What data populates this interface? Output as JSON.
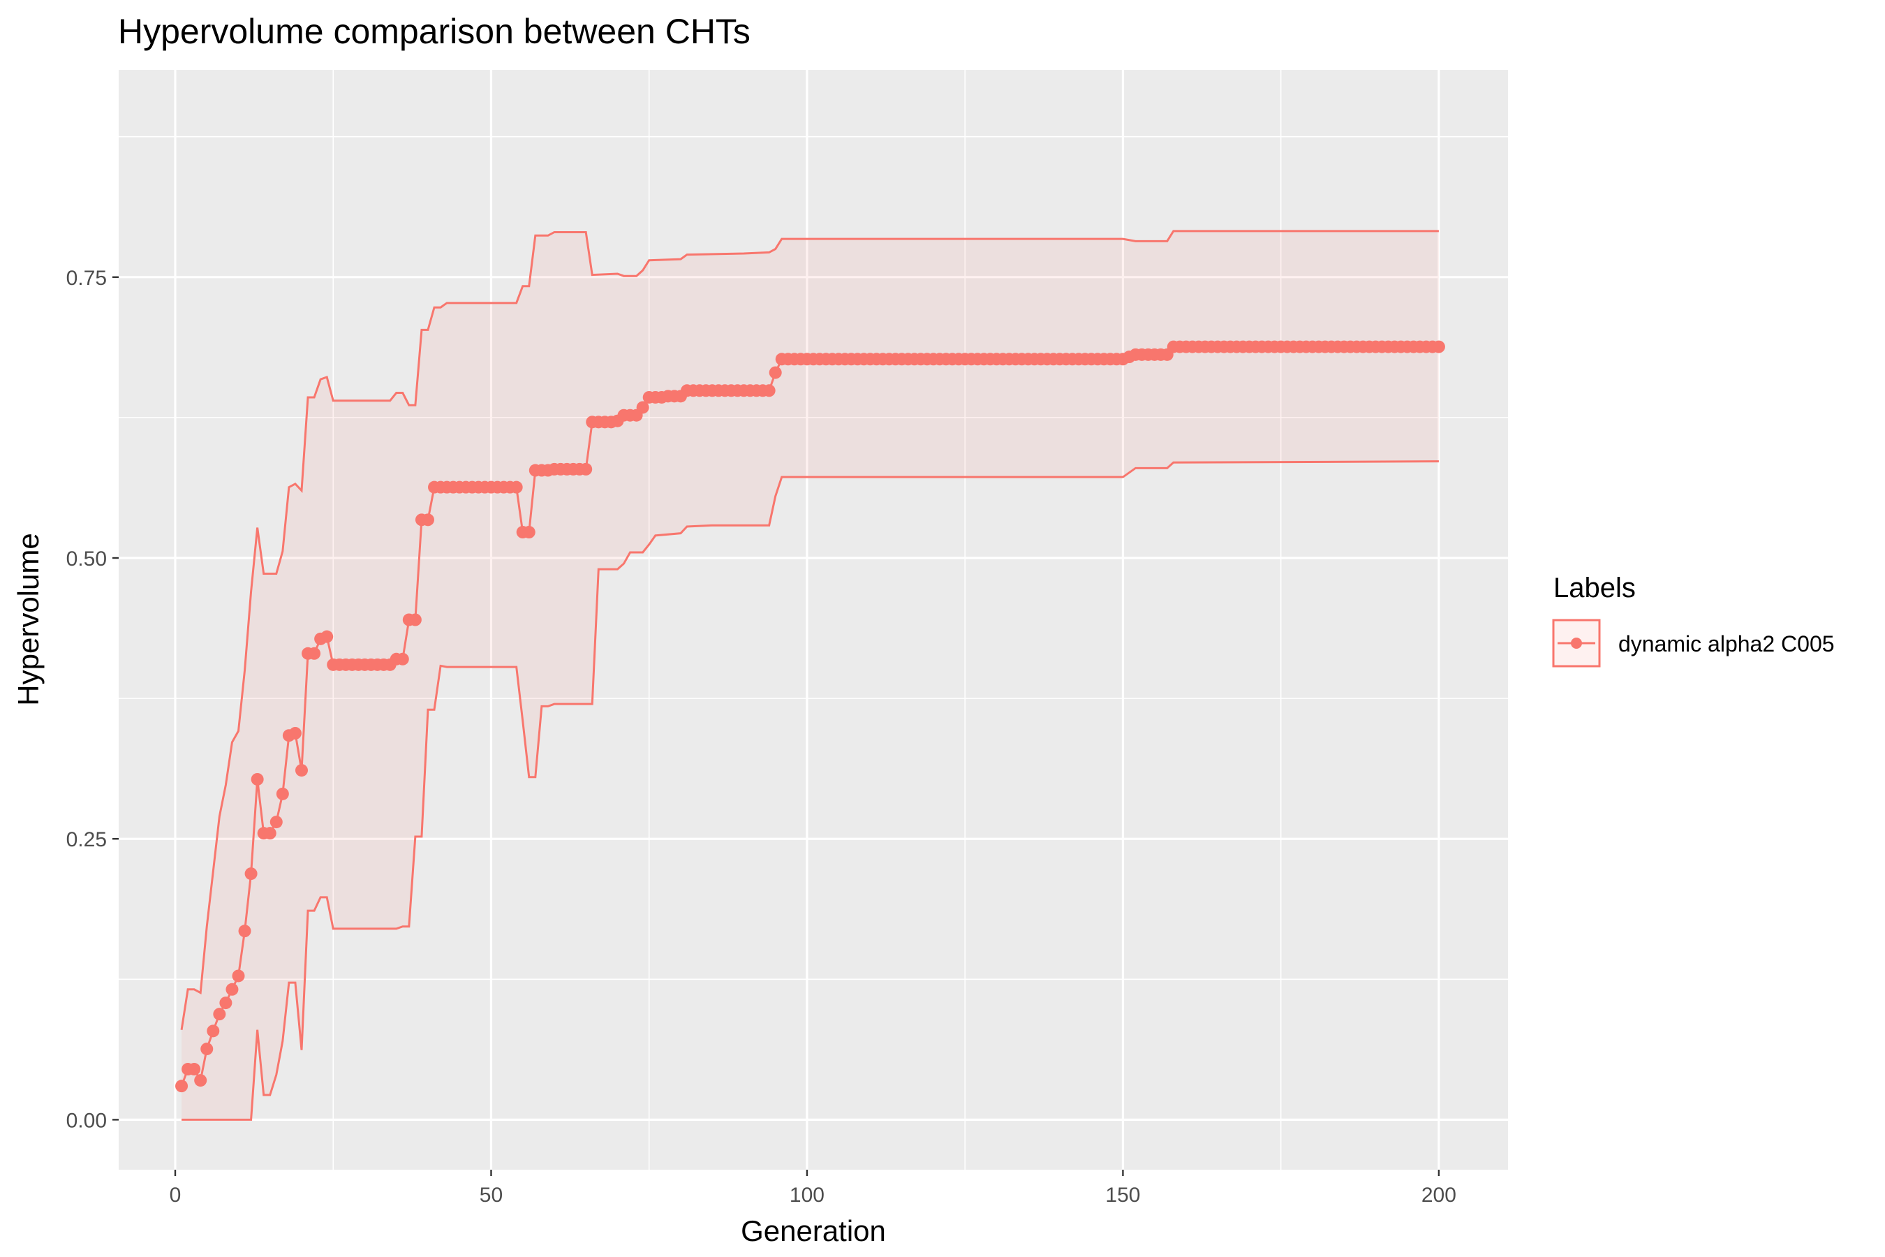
{
  "chart_data": {
    "type": "line",
    "title": "Hypervolume comparison between CHTs",
    "xlabel": "Generation",
    "ylabel": "Hypervolume",
    "xlim": [
      -8.95,
      210.95
    ],
    "ylim": [
      -0.0445,
      0.9345
    ],
    "x_ticks": [
      0,
      50,
      100,
      150,
      200
    ],
    "x_tick_labels": [
      "0",
      "50",
      "100",
      "150",
      "200"
    ],
    "y_ticks": [
      0,
      0.25,
      0.5,
      0.75
    ],
    "y_tick_labels": [
      "0.00",
      "0.25",
      "0.50",
      "0.75"
    ],
    "grid": true,
    "legend_position": "right",
    "legend_title": "Labels",
    "series": [
      {
        "name": "dynamic alpha2 C005",
        "color": "#F8766D",
        "ribbon_fill": "#F8766D",
        "mean": [
          [
            1,
            0.03
          ],
          [
            2,
            0.045
          ],
          [
            3,
            0.045
          ],
          [
            4,
            0.035
          ],
          [
            5,
            0.063
          ],
          [
            6,
            0.079
          ],
          [
            7,
            0.094
          ],
          [
            8,
            0.104
          ],
          [
            9,
            0.116
          ],
          [
            10,
            0.128
          ],
          [
            11,
            0.168
          ],
          [
            12,
            0.219
          ],
          [
            13,
            0.303
          ],
          [
            14,
            0.255
          ],
          [
            15,
            0.255
          ],
          [
            16,
            0.265
          ],
          [
            17,
            0.29
          ],
          [
            18,
            0.342
          ],
          [
            19,
            0.344
          ],
          [
            20,
            0.311
          ],
          [
            21,
            0.415
          ],
          [
            22,
            0.415
          ],
          [
            23,
            0.428
          ],
          [
            24,
            0.43
          ],
          [
            25,
            0.405
          ],
          [
            26,
            0.405
          ],
          [
            27,
            0.405
          ],
          [
            28,
            0.405
          ],
          [
            29,
            0.405
          ],
          [
            30,
            0.405
          ],
          [
            31,
            0.405
          ],
          [
            32,
            0.405
          ],
          [
            33,
            0.405
          ],
          [
            34,
            0.405
          ],
          [
            35,
            0.41
          ],
          [
            36,
            0.41
          ],
          [
            37,
            0.445
          ],
          [
            38,
            0.445
          ],
          [
            39,
            0.534
          ],
          [
            40,
            0.534
          ],
          [
            41,
            0.563
          ],
          [
            42,
            0.563
          ],
          [
            43,
            0.563
          ],
          [
            44,
            0.563
          ],
          [
            45,
            0.563
          ],
          [
            46,
            0.563
          ],
          [
            47,
            0.563
          ],
          [
            48,
            0.563
          ],
          [
            49,
            0.563
          ],
          [
            50,
            0.563
          ],
          [
            51,
            0.563
          ],
          [
            52,
            0.563
          ],
          [
            53,
            0.563
          ],
          [
            54,
            0.563
          ],
          [
            55,
            0.523
          ],
          [
            56,
            0.523
          ],
          [
            57,
            0.578
          ],
          [
            58,
            0.578
          ],
          [
            59,
            0.578
          ],
          [
            60,
            0.579
          ],
          [
            61,
            0.579
          ],
          [
            62,
            0.579
          ],
          [
            63,
            0.579
          ],
          [
            64,
            0.579
          ],
          [
            65,
            0.579
          ],
          [
            66,
            0.621
          ],
          [
            67,
            0.621
          ],
          [
            68,
            0.621
          ],
          [
            69,
            0.621
          ],
          [
            70,
            0.622
          ],
          [
            71,
            0.627
          ],
          [
            72,
            0.627
          ],
          [
            73,
            0.627
          ],
          [
            74,
            0.634
          ],
          [
            75,
            0.643
          ],
          [
            76,
            0.643
          ],
          [
            77,
            0.643
          ],
          [
            78,
            0.644
          ],
          [
            79,
            0.644
          ],
          [
            80,
            0.644
          ],
          [
            81,
            0.649
          ],
          [
            82,
            0.649
          ],
          [
            83,
            0.649
          ],
          [
            84,
            0.649
          ],
          [
            85,
            0.649
          ],
          [
            86,
            0.649
          ],
          [
            87,
            0.649
          ],
          [
            88,
            0.649
          ],
          [
            89,
            0.649
          ],
          [
            90,
            0.649
          ],
          [
            91,
            0.649
          ],
          [
            92,
            0.649
          ],
          [
            93,
            0.649
          ],
          [
            94,
            0.649
          ],
          [
            95,
            0.665
          ],
          [
            96,
            0.677
          ],
          [
            100,
            0.677
          ],
          [
            110,
            0.677
          ],
          [
            120,
            0.677
          ],
          [
            130,
            0.677
          ],
          [
            140,
            0.677
          ],
          [
            150,
            0.677
          ],
          [
            152,
            0.681
          ],
          [
            155,
            0.681
          ],
          [
            157,
            0.681
          ],
          [
            158,
            0.688
          ],
          [
            160,
            0.688
          ],
          [
            170,
            0.688
          ],
          [
            180,
            0.688
          ],
          [
            190,
            0.688
          ],
          [
            200,
            0.688
          ]
        ],
        "upper": [
          [
            1,
            0.08
          ],
          [
            2,
            0.116
          ],
          [
            3,
            0.116
          ],
          [
            4,
            0.113
          ],
          [
            5,
            0.172
          ],
          [
            7,
            0.27
          ],
          [
            8,
            0.298
          ],
          [
            9,
            0.336
          ],
          [
            10,
            0.346
          ],
          [
            11,
            0.4
          ],
          [
            12,
            0.47
          ],
          [
            13,
            0.527
          ],
          [
            14,
            0.486
          ],
          [
            15,
            0.486
          ],
          [
            16,
            0.486
          ],
          [
            17,
            0.506
          ],
          [
            18,
            0.563
          ],
          [
            19,
            0.566
          ],
          [
            20,
            0.56
          ],
          [
            21,
            0.643
          ],
          [
            22,
            0.643
          ],
          [
            23,
            0.659
          ],
          [
            24,
            0.661
          ],
          [
            25,
            0.64
          ],
          [
            30,
            0.64
          ],
          [
            34,
            0.64
          ],
          [
            35,
            0.647
          ],
          [
            36,
            0.647
          ],
          [
            37,
            0.636
          ],
          [
            38,
            0.636
          ],
          [
            39,
            0.703
          ],
          [
            40,
            0.703
          ],
          [
            41,
            0.723
          ],
          [
            42,
            0.723
          ],
          [
            43,
            0.727
          ],
          [
            50,
            0.727
          ],
          [
            54,
            0.727
          ],
          [
            55,
            0.742
          ],
          [
            56,
            0.742
          ],
          [
            57,
            0.787
          ],
          [
            58,
            0.787
          ],
          [
            59,
            0.787
          ],
          [
            60,
            0.79
          ],
          [
            61,
            0.79
          ],
          [
            62,
            0.79
          ],
          [
            63,
            0.79
          ],
          [
            64,
            0.79
          ],
          [
            65,
            0.79
          ],
          [
            66,
            0.752
          ],
          [
            70,
            0.753
          ],
          [
            71,
            0.751
          ],
          [
            72,
            0.751
          ],
          [
            73,
            0.751
          ],
          [
            74,
            0.756
          ],
          [
            75,
            0.765
          ],
          [
            80,
            0.766
          ],
          [
            81,
            0.77
          ],
          [
            90,
            0.771
          ],
          [
            94,
            0.772
          ],
          [
            95,
            0.775
          ],
          [
            96,
            0.784
          ],
          [
            110,
            0.784
          ],
          [
            130,
            0.784
          ],
          [
            150,
            0.784
          ],
          [
            152,
            0.782
          ],
          [
            157,
            0.782
          ],
          [
            158,
            0.791
          ],
          [
            200,
            0.791
          ]
        ],
        "lower": [
          [
            1,
            0.0
          ],
          [
            5,
            0.0
          ],
          [
            10,
            0.0
          ],
          [
            12,
            0.0
          ],
          [
            13,
            0.08
          ],
          [
            14,
            0.022
          ],
          [
            15,
            0.022
          ],
          [
            16,
            0.04
          ],
          [
            17,
            0.07
          ],
          [
            18,
            0.122
          ],
          [
            19,
            0.122
          ],
          [
            20,
            0.062
          ],
          [
            21,
            0.186
          ],
          [
            22,
            0.186
          ],
          [
            23,
            0.198
          ],
          [
            24,
            0.198
          ],
          [
            25,
            0.17
          ],
          [
            30,
            0.17
          ],
          [
            35,
            0.17
          ],
          [
            36,
            0.172
          ],
          [
            37,
            0.172
          ],
          [
            38,
            0.252
          ],
          [
            39,
            0.252
          ],
          [
            40,
            0.365
          ],
          [
            41,
            0.365
          ],
          [
            42,
            0.404
          ],
          [
            43,
            0.403
          ],
          [
            50,
            0.403
          ],
          [
            54,
            0.403
          ],
          [
            55,
            0.355
          ],
          [
            56,
            0.305
          ],
          [
            57,
            0.305
          ],
          [
            58,
            0.368
          ],
          [
            59,
            0.368
          ],
          [
            60,
            0.37
          ],
          [
            65,
            0.37
          ],
          [
            66,
            0.37
          ],
          [
            67,
            0.49
          ],
          [
            70,
            0.49
          ],
          [
            71,
            0.495
          ],
          [
            72,
            0.505
          ],
          [
            73,
            0.505
          ],
          [
            74,
            0.505
          ],
          [
            75,
            0.512
          ],
          [
            76,
            0.52
          ],
          [
            80,
            0.522
          ],
          [
            81,
            0.528
          ],
          [
            85,
            0.529
          ],
          [
            90,
            0.529
          ],
          [
            94,
            0.529
          ],
          [
            95,
            0.555
          ],
          [
            96,
            0.572
          ],
          [
            110,
            0.572
          ],
          [
            130,
            0.572
          ],
          [
            150,
            0.572
          ],
          [
            152,
            0.58
          ],
          [
            157,
            0.58
          ],
          [
            158,
            0.585
          ],
          [
            200,
            0.586
          ]
        ]
      }
    ]
  }
}
